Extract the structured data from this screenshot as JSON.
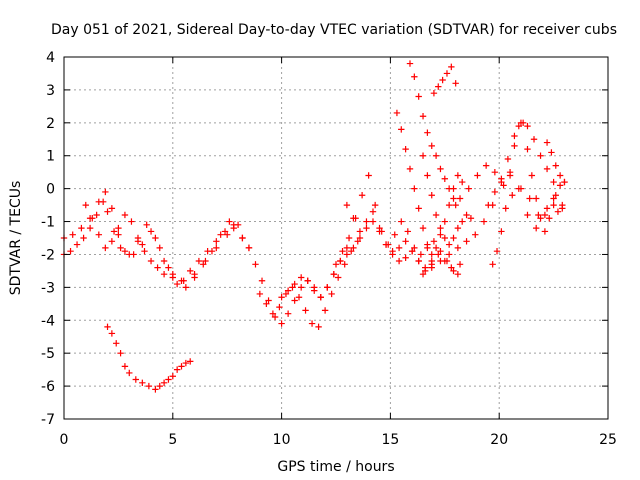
{
  "chart_data": {
    "type": "scatter",
    "title": "Day 051 of 2021, Sidereal Day-to-day VTEC variation (SDTVAR) for receiver cubs",
    "xlabel": "GPS time / hours",
    "ylabel": "SDTVAR / TECUs",
    "xlim": [
      0,
      25
    ],
    "ylim": [
      -7,
      4
    ],
    "xticks": [
      0,
      5,
      10,
      15,
      20,
      25
    ],
    "yticks": [
      -7,
      -6,
      -5,
      -4,
      -3,
      -2,
      -1,
      0,
      1,
      2,
      3,
      4
    ],
    "grid": true,
    "marker": "+",
    "series_color": "#ff0000",
    "series": [
      {
        "x": [
          0.0,
          0.3,
          0.6,
          0.9,
          1.2,
          1.5,
          1.8,
          2.0,
          2.3,
          2.6,
          3.0,
          3.4,
          3.8,
          4.2,
          4.6,
          5.0,
          5.5,
          6.0,
          6.5,
          7.0,
          7.5,
          7.8,
          8.2,
          8.5
        ],
        "y": [
          -2.0,
          -1.9,
          -1.7,
          -1.5,
          -1.2,
          -0.8,
          -0.4,
          -0.7,
          -1.3,
          -1.8,
          -2.0,
          -1.6,
          -1.1,
          -1.5,
          -2.2,
          -2.6,
          -2.8,
          -2.6,
          -2.2,
          -1.8,
          -1.4,
          -1.2,
          -1.5,
          -1.8
        ]
      },
      {
        "x": [
          0.0,
          0.4,
          0.8,
          1.2,
          1.6,
          1.9,
          2.2,
          2.5,
          2.8,
          3.2,
          3.6,
          4.0,
          4.4,
          4.8,
          5.2,
          5.6,
          6.0,
          6.4,
          6.8,
          7.2,
          7.6,
          8.0
        ],
        "y": [
          -1.5,
          -1.4,
          -1.2,
          -0.9,
          -0.4,
          -0.1,
          -0.6,
          -1.4,
          -1.9,
          -2.0,
          -1.7,
          -1.3,
          -1.8,
          -2.4,
          -2.9,
          -3.0,
          -2.7,
          -2.3,
          -1.9,
          -1.4,
          -1.0,
          -1.1
        ]
      },
      {
        "x": [
          1.0,
          1.3,
          1.6,
          1.9,
          2.2,
          2.5,
          2.8,
          3.1,
          3.4,
          3.7,
          4.0,
          4.3,
          4.6,
          5.0,
          5.4,
          5.8,
          6.2,
          6.6,
          7.0,
          7.4,
          7.8
        ],
        "y": [
          -0.5,
          -0.9,
          -1.4,
          -1.8,
          -1.6,
          -1.2,
          -0.8,
          -1.0,
          -1.5,
          -1.9,
          -2.2,
          -2.4,
          -2.6,
          -2.7,
          -2.8,
          -2.5,
          -2.2,
          -1.9,
          -1.6,
          -1.3,
          -1.1
        ]
      },
      {
        "x": [
          2.0,
          2.2,
          2.4,
          2.6,
          2.8,
          3.0,
          3.3,
          3.6,
          3.9,
          4.2,
          4.4,
          4.6,
          4.8,
          5.0,
          5.2,
          5.4,
          5.6,
          5.8
        ],
        "y": [
          -4.2,
          -4.4,
          -4.7,
          -5.0,
          -5.4,
          -5.6,
          -5.8,
          -5.9,
          -6.0,
          -6.1,
          -6.0,
          -5.9,
          -5.8,
          -5.7,
          -5.5,
          -5.4,
          -5.3,
          -5.25
        ]
      },
      {
        "x": [
          8.2,
          8.5,
          8.8,
          9.1,
          9.4,
          9.7,
          10.0,
          10.3,
          10.6,
          10.9,
          11.2,
          11.5,
          11.8,
          12.1,
          12.4,
          12.7,
          13.0
        ],
        "y": [
          -1.5,
          -1.8,
          -2.3,
          -2.8,
          -3.4,
          -3.9,
          -4.1,
          -3.8,
          -3.4,
          -3.0,
          -2.8,
          -3.0,
          -3.3,
          -3.0,
          -2.6,
          -2.2,
          -1.8
        ]
      },
      {
        "x": [
          9.0,
          9.3,
          9.6,
          9.9,
          10.2,
          10.5,
          10.8,
          11.1,
          11.4,
          11.7,
          12.0,
          12.3,
          12.6,
          12.9,
          13.2,
          13.5
        ],
        "y": [
          -3.2,
          -3.5,
          -3.8,
          -3.6,
          -3.2,
          -3.0,
          -3.3,
          -3.7,
          -4.1,
          -4.2,
          -3.7,
          -3.2,
          -2.7,
          -2.3,
          -1.9,
          -1.6
        ]
      },
      {
        "x": [
          10.0,
          10.3,
          10.6,
          10.9,
          11.2,
          11.5,
          11.8,
          12.1,
          12.4,
          12.7,
          13.0,
          13.3,
          13.6,
          13.9,
          14.2,
          14.5,
          14.8,
          15.1,
          15.4,
          15.7,
          16.0,
          16.3,
          16.6,
          16.9
        ],
        "y": [
          -3.3,
          -3.1,
          -2.9,
          -2.7,
          -2.8,
          -3.1,
          -3.3,
          -3.0,
          -2.6,
          -2.2,
          -2.0,
          -1.8,
          -1.5,
          -1.2,
          -1.0,
          -1.3,
          -1.7,
          -1.9,
          -1.8,
          -1.6,
          -1.9,
          -2.2,
          -2.5,
          -2.3
        ]
      },
      {
        "x": [
          12.5,
          12.8,
          13.1,
          13.4,
          13.7,
          14.0,
          14.3,
          14.6,
          14.9,
          15.2,
          15.5,
          15.8,
          16.1,
          16.4,
          16.7,
          17.0,
          17.3,
          17.6,
          17.9,
          18.2
        ],
        "y": [
          -2.3,
          -1.9,
          -1.5,
          -0.9,
          -0.2,
          0.4,
          -0.5,
          -1.3,
          -1.7,
          -1.4,
          -1.0,
          -1.3,
          -1.8,
          -2.0,
          -1.8,
          -1.6,
          -1.9,
          -2.2,
          -2.5,
          -2.3
        ]
      },
      {
        "x": [
          13.0,
          13.3,
          13.6,
          13.9,
          14.2,
          14.5,
          14.8,
          15.1,
          15.4,
          15.7,
          16.0,
          16.3,
          16.6,
          16.9,
          17.2,
          17.5,
          17.8,
          18.1
        ],
        "y": [
          -0.5,
          -0.9,
          -1.3,
          -1.0,
          -0.7,
          -1.2,
          -1.7,
          -2.0,
          -2.2,
          -2.1,
          -1.9,
          -2.2,
          -2.4,
          -2.2,
          -2.0,
          -2.2,
          -2.4,
          -2.6
        ]
      },
      {
        "x": [
          15.3,
          15.5,
          15.7,
          15.9,
          16.1,
          16.3,
          16.5,
          16.7,
          16.9,
          17.1,
          17.3,
          17.5,
          17.7,
          17.9,
          18.1,
          18.3
        ],
        "y": [
          2.3,
          1.8,
          1.2,
          0.6,
          0.0,
          -0.6,
          -1.2,
          -1.7,
          -2.0,
          -1.8,
          -1.4,
          -1.0,
          -0.5,
          0.0,
          0.4,
          0.2
        ]
      },
      {
        "x": [
          15.9,
          16.1,
          16.3,
          16.5,
          16.7,
          16.9,
          17.1,
          17.3,
          17.5,
          17.7,
          17.9,
          18.0
        ],
        "y": [
          3.8,
          3.4,
          2.8,
          2.2,
          1.7,
          1.3,
          1.0,
          0.6,
          0.3,
          0.0,
          -0.3,
          -0.5
        ]
      },
      {
        "x": [
          16.5,
          16.7,
          16.9,
          17.1,
          17.3,
          17.5,
          17.7,
          17.9,
          18.1,
          18.3,
          18.5,
          18.7
        ],
        "y": [
          1.0,
          0.4,
          -0.2,
          -0.8,
          -1.2,
          -1.5,
          -1.7,
          -1.5,
          -1.2,
          -1.0,
          -0.8,
          -0.9
        ]
      },
      {
        "x": [
          17.0,
          17.2,
          17.4,
          17.6,
          17.8,
          18.0
        ],
        "y": [
          2.9,
          3.1,
          3.3,
          3.5,
          3.7,
          3.2
        ]
      },
      {
        "x": [
          16.5,
          16.9,
          17.3,
          17.7,
          18.1,
          18.5,
          18.9,
          19.3,
          19.7,
          20.1,
          20.5,
          20.9,
          21.3,
          21.7,
          22.1,
          22.5,
          22.9
        ],
        "y": [
          -2.6,
          -2.4,
          -2.2,
          -2.0,
          -1.8,
          -1.6,
          -1.4,
          -1.0,
          -0.5,
          0.2,
          0.5,
          0.0,
          -0.8,
          -1.2,
          -0.8,
          -0.3,
          -0.5
        ]
      },
      {
        "x": [
          18.2,
          18.6,
          19.0,
          19.4,
          19.8,
          20.2,
          20.6,
          21.0,
          21.4,
          21.8,
          22.2,
          22.6,
          23.0
        ],
        "y": [
          -0.3,
          0.0,
          0.4,
          0.7,
          0.5,
          0.1,
          -0.2,
          0.0,
          -0.3,
          -0.8,
          -0.6,
          -0.2,
          0.2
        ]
      },
      {
        "x": [
          19.7,
          19.9,
          20.1,
          20.3,
          20.5,
          20.7,
          20.9,
          21.1,
          21.3,
          21.5,
          21.7,
          21.9,
          22.1,
          22.3,
          22.5,
          22.7,
          22.9
        ],
        "y": [
          -2.3,
          -1.9,
          -1.3,
          -0.6,
          0.4,
          1.3,
          1.9,
          2.0,
          1.2,
          0.4,
          -0.3,
          -0.9,
          -1.3,
          -0.9,
          -0.5,
          -0.7,
          -0.6
        ]
      },
      {
        "x": [
          19.5,
          19.8,
          20.1,
          20.4,
          20.7,
          21.0,
          21.3,
          21.6,
          21.9,
          22.2,
          22.5,
          22.8
        ],
        "y": [
          -0.5,
          -0.1,
          0.3,
          0.9,
          1.6,
          2.0,
          1.9,
          1.5,
          1.0,
          0.6,
          0.2,
          0.1
        ]
      },
      {
        "x": [
          22.2,
          22.4,
          22.6,
          22.8,
          23.0
        ],
        "y": [
          1.4,
          1.1,
          0.7,
          0.4,
          0.2
        ]
      }
    ]
  }
}
